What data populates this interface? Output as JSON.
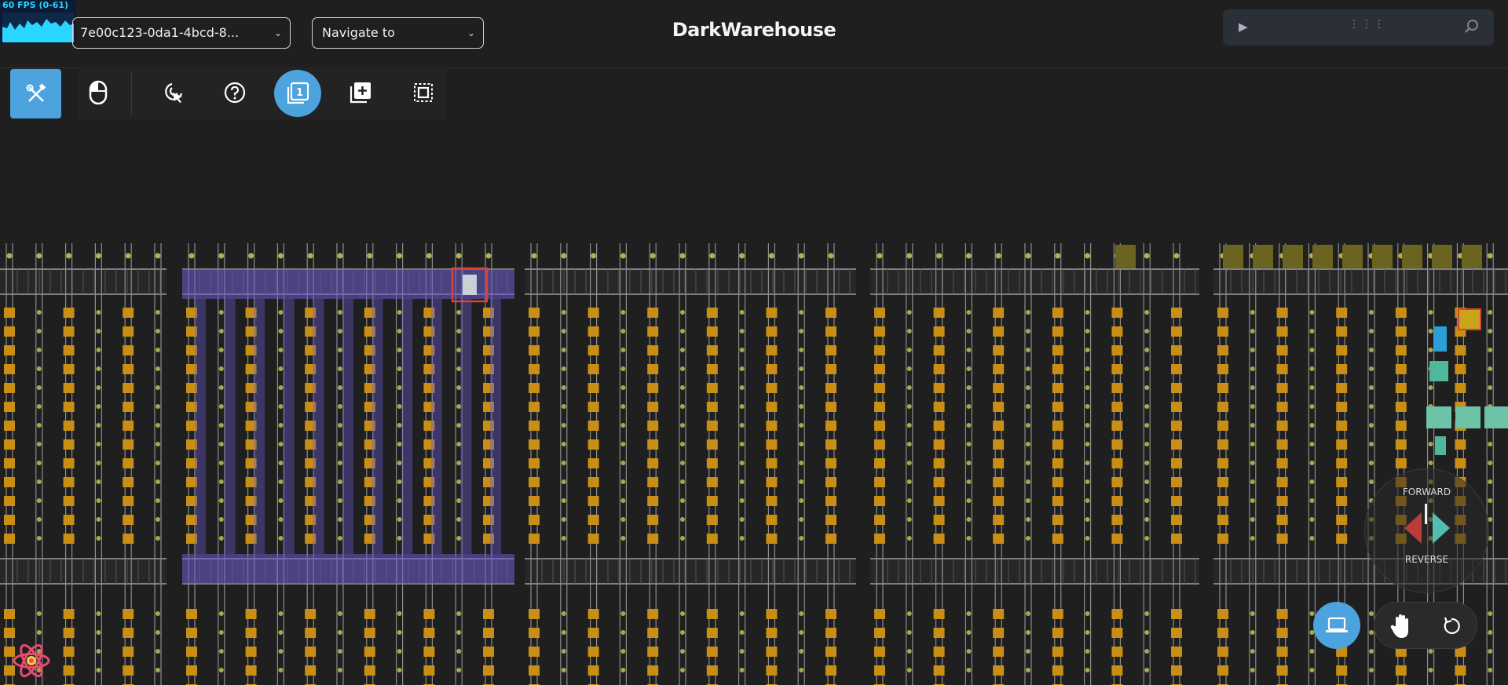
{
  "fps": {
    "label": "60 FPS (0-61)"
  },
  "header": {
    "id_select_value": "7e00c123-0da1-4bcd-8...",
    "navigate_placeholder": "Navigate to",
    "app_title": "DarkWarehouse"
  },
  "toolbar": {
    "tools": [
      "settings-tools",
      "mouse",
      "select-cursor",
      "help",
      "layer-1",
      "add-layer",
      "selection-box"
    ],
    "active_tool": "layer-1",
    "layer_number": "1"
  },
  "direction_control": {
    "forward_label": "FORWARD",
    "reverse_label": "REVERSE"
  },
  "colors": {
    "background": "#1f1f1f",
    "accent_blue": "#4da3de",
    "rail": "#9d9d9d",
    "tote": "#c98e14",
    "selection": "#6a5acd",
    "robot_red": "#d9413c",
    "robot_teal": "#5bd7c9"
  }
}
